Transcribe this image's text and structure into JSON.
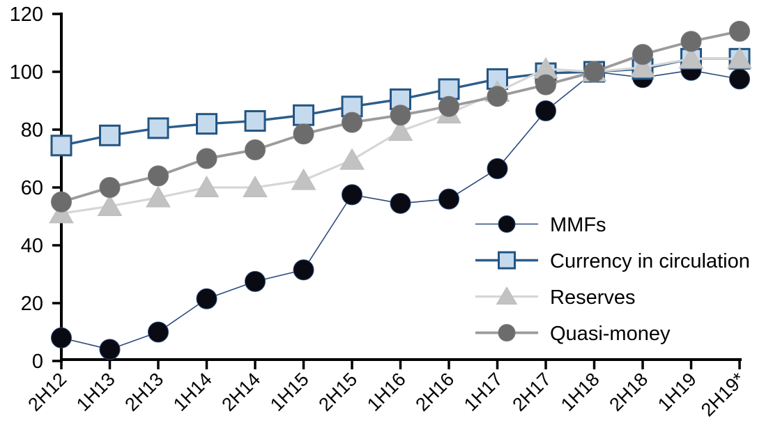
{
  "chart_data": {
    "type": "line",
    "title": "",
    "xlabel": "",
    "ylabel": "",
    "categories": [
      "2H12",
      "1H13",
      "2H13",
      "1H14",
      "2H14",
      "1H15",
      "2H15",
      "1H16",
      "2H16",
      "1H17",
      "2H17",
      "1H18",
      "2H18",
      "1H19",
      "2H19*"
    ],
    "yticks": [
      0,
      20,
      40,
      60,
      80,
      100,
      120
    ],
    "ylim": [
      0,
      120
    ],
    "grid": false,
    "legend_position": "center-right",
    "axis_color": "#000000",
    "series": [
      {
        "name": "MMFs",
        "marker": "circle",
        "line_color": "#2b4a7d",
        "line_width": 1.6,
        "marker_fill": "#0a0a12",
        "marker_stroke": "#2b4a7d",
        "marker_stroke_width": 1,
        "marker_size": 29,
        "values": [
          8,
          4,
          10,
          21.5,
          27.5,
          31.5,
          57.5,
          54.5,
          56,
          66.5,
          86.5,
          100,
          98,
          100.5,
          97.5
        ]
      },
      {
        "name": "Currency in circulation",
        "marker": "square",
        "line_color": "#2c5c8c",
        "line_width": 3.4,
        "marker_fill": "#c6daee",
        "marker_stroke": "#235582",
        "marker_stroke_width": 3,
        "marker_size": 28,
        "values": [
          74.5,
          78,
          80.5,
          82,
          83,
          85,
          88,
          90.5,
          94,
          97.5,
          99.5,
          100,
          101,
          104.5,
          104.5
        ]
      },
      {
        "name": "Reserves",
        "marker": "triangle",
        "line_color": "#d6d6d6",
        "line_width": 3.2,
        "marker_fill": "#c2c2c2",
        "marker_stroke": "#bdbdbd",
        "marker_stroke_width": 1,
        "marker_size": 31,
        "values": [
          51,
          53.5,
          56.5,
          60,
          60,
          62.5,
          69.5,
          79.5,
          85.5,
          93,
          101,
          100,
          101.5,
          104.5,
          104.5
        ]
      },
      {
        "name": "Quasi-money",
        "marker": "circle",
        "line_color": "#9b9b9b",
        "line_width": 3.8,
        "marker_fill": "#6c6c6c",
        "marker_stroke": "#7a7a7a",
        "marker_stroke_width": 1,
        "marker_size": 29,
        "values": [
          55,
          60,
          64,
          70,
          73,
          78.5,
          82.5,
          85,
          88,
          91.5,
          95.5,
          100,
          106,
          110.5,
          114
        ]
      }
    ]
  }
}
